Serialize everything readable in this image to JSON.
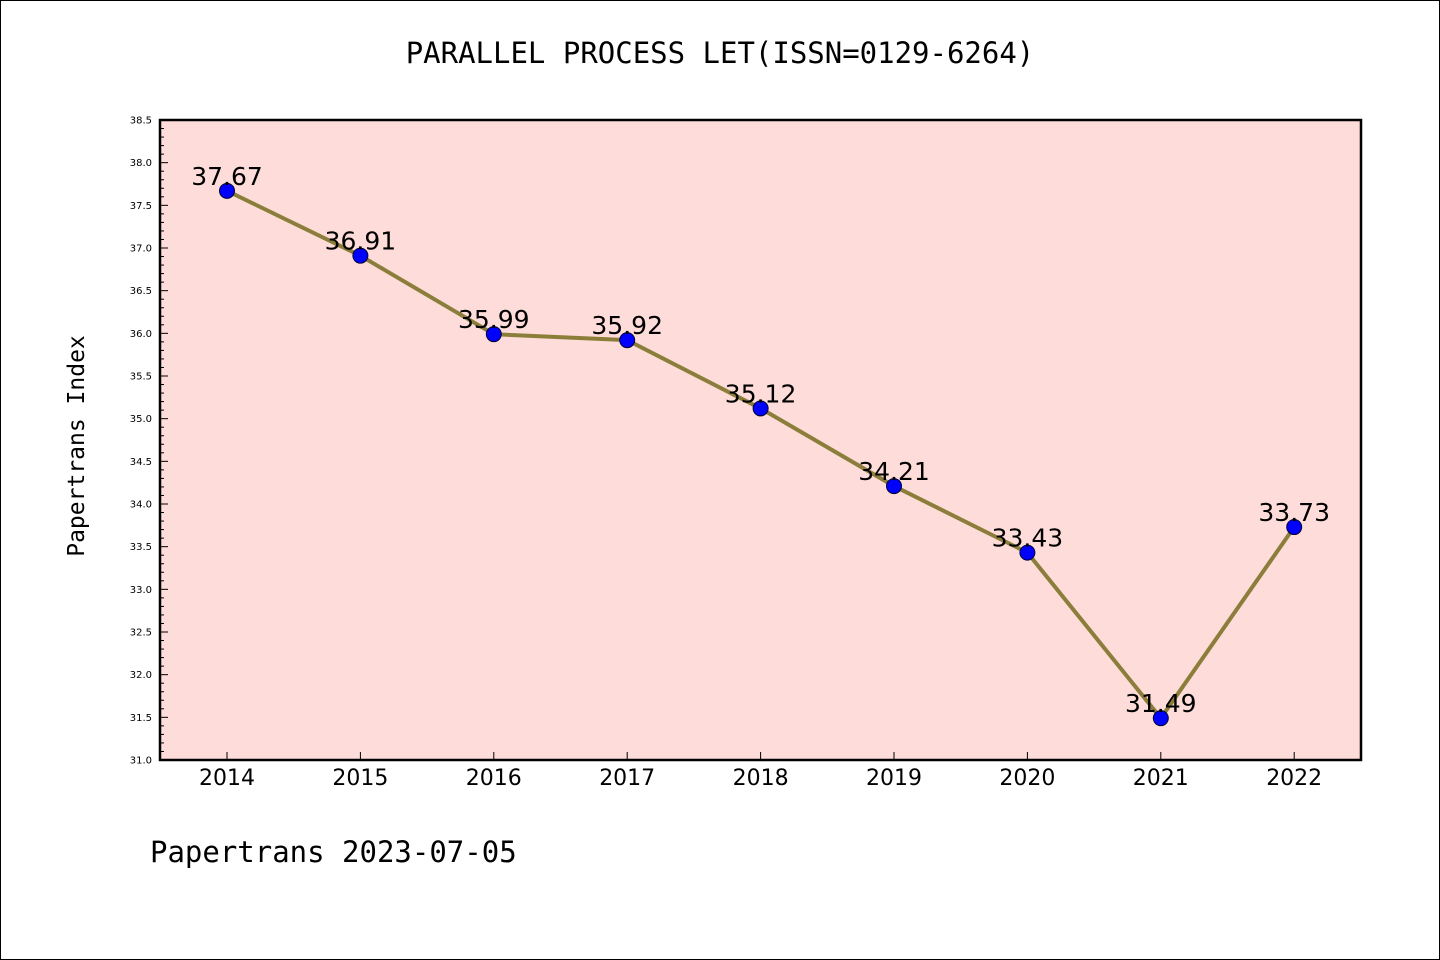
{
  "chart_data": {
    "type": "line",
    "title": "PARALLEL PROCESS LET(ISSN=0129-6264)",
    "xlabel": "",
    "ylabel": "Papertrans Index",
    "footer": "Papertrans 2023-07-05",
    "categories": [
      "2014",
      "2015",
      "2016",
      "2017",
      "2018",
      "2019",
      "2020",
      "2021",
      "2022"
    ],
    "series": [
      {
        "values": [
          37.67,
          36.91,
          35.99,
          35.92,
          35.12,
          34.21,
          33.43,
          31.49,
          33.73
        ],
        "data_labels": [
          "37.67",
          "36.91",
          "35.99",
          "35.92",
          "35.12",
          "34.21",
          "33.43",
          "31.49",
          "33.73"
        ],
        "line_color": "#8b7d3a",
        "marker_color": "#0000ff"
      }
    ],
    "ylim": [
      31.0,
      38.5
    ],
    "yticks": [
      "31.0",
      "31.5",
      "32.0",
      "32.5",
      "33.0",
      "33.5",
      "34.0",
      "34.5",
      "35.0",
      "35.5",
      "36.0",
      "36.5",
      "37.0",
      "37.5",
      "38.0",
      "38.5"
    ],
    "plot_background": "#fddcd9",
    "grid": false,
    "legend": "none"
  }
}
